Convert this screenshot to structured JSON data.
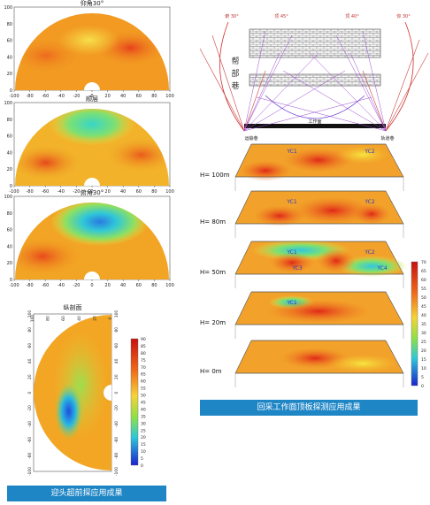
{
  "left_panel": {
    "fan_titles": [
      "仰角30°",
      "顺层",
      "俯角30°"
    ],
    "x_ticks": [
      "-100",
      "-80",
      "-60",
      "-40",
      "-20",
      "0",
      "20",
      "40",
      "60",
      "80",
      "100"
    ],
    "y_ticks": [
      "0",
      "20",
      "40",
      "60",
      "80",
      "100"
    ],
    "vertical_fan": {
      "title": "纵剖面",
      "top_ticks": [
        "100",
        "80",
        "60",
        "40",
        "20",
        "0"
      ],
      "side_ticks": [
        "100",
        "80",
        "60",
        "40",
        "20",
        "0",
        "-20",
        "-40",
        "-60",
        "-80",
        "-100"
      ],
      "scale_ticks": [
        "90",
        "85",
        "80",
        "75",
        "70",
        "65",
        "60",
        "55",
        "50",
        "45",
        "40",
        "35",
        "30",
        "25",
        "20",
        "15",
        "10",
        "5",
        "0"
      ]
    },
    "caption": "迎头超前探应用成果"
  },
  "right_panel": {
    "top_diagram": {
      "angle_labels": [
        "俯 30°",
        "顶 45°",
        "顶 40°",
        "仰 30°"
      ],
      "side_labels": [
        "帮",
        "部",
        "巷"
      ],
      "bottom_left": "运输巷",
      "bottom_mid": "工作面",
      "bottom_right": "轨道巷"
    },
    "layers": [
      {
        "label": "H= 100m",
        "marks": [
          "YC1",
          "YC2"
        ]
      },
      {
        "label": "H= 80m",
        "marks": [
          "YC1",
          "YC2"
        ]
      },
      {
        "label": "H= 50m",
        "marks": [
          "YC1",
          "YC2",
          "YC3",
          "YC4"
        ]
      },
      {
        "label": "H= 20m",
        "marks": [
          "YC1"
        ]
      },
      {
        "label": "H= 0m",
        "marks": []
      }
    ],
    "scale_ticks": [
      "70",
      "65",
      "60",
      "55",
      "50",
      "45",
      "40",
      "35",
      "30",
      "25",
      "20",
      "15",
      "10",
      "5",
      "0"
    ],
    "caption": "回采工作面顶板探测应用成果"
  }
}
